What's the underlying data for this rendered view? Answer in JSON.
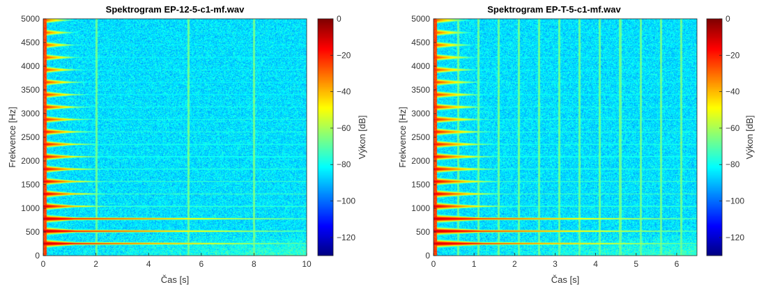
{
  "colors": {
    "colormap": "jet",
    "axis_line": "#262626"
  },
  "chart_data": [
    {
      "type": "heatmap",
      "title": "Spektrogram EP-12-5-c1-mf.wav",
      "xlabel": "Čas [s]",
      "ylabel": "Frekvence [Hz]",
      "colorbar_label": "Výkon [dB]",
      "xlim": [
        0,
        10
      ],
      "ylim": [
        0,
        5000
      ],
      "clim": [
        -130,
        0
      ],
      "x_ticks": [
        0,
        2,
        4,
        6,
        8,
        10
      ],
      "y_ticks": [
        0,
        500,
        1000,
        1500,
        2000,
        2500,
        3000,
        3500,
        4000,
        4500,
        5000
      ],
      "colorbar_ticks": [
        0,
        -20,
        -40,
        -60,
        -80,
        -100,
        -120
      ],
      "fundamental_hz": 262,
      "harmonic_count": 19,
      "background_db": -85,
      "harmonics_fade_by_s": 2.5,
      "low_harmonics_persist_to_s": 10,
      "transient_lines_s": [
        2,
        5.5,
        8
      ],
      "grid": false
    },
    {
      "type": "heatmap",
      "title": "Spektrogram EP-T-5-c1-mf.wav",
      "xlabel": "Čas [s]",
      "ylabel": "Frekvence [Hz]",
      "colorbar_label": "Výkon [dB]",
      "xlim": [
        0,
        6.5
      ],
      "ylim": [
        0,
        5000
      ],
      "clim": [
        -130,
        0
      ],
      "x_ticks": [
        0,
        1,
        2,
        3,
        4,
        5,
        6
      ],
      "y_ticks": [
        0,
        500,
        1000,
        1500,
        2000,
        2500,
        3000,
        3500,
        4000,
        4500,
        5000
      ],
      "colorbar_ticks": [
        0,
        -20,
        -40,
        -60,
        -80,
        -100,
        -120
      ],
      "fundamental_hz": 262,
      "harmonic_count": 19,
      "background_db": -85,
      "harmonics_fade_by_s": 1.8,
      "low_harmonics_persist_to_s": 6.5,
      "transient_lines_s": [
        0.6,
        1.1,
        1.6,
        2.1,
        2.6,
        3.1,
        3.6,
        4.1,
        4.6,
        5.1,
        5.6,
        6.1
      ],
      "grid": false
    }
  ]
}
